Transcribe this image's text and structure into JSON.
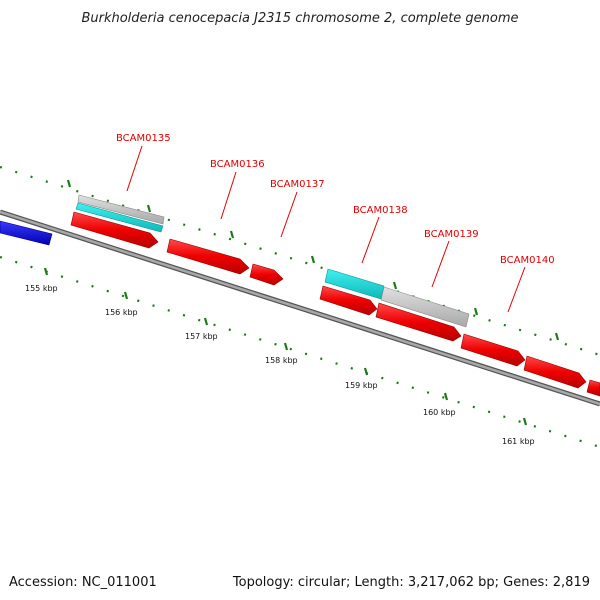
{
  "title": "Burkholderia cenocepacia J2315 chromosome 2, complete genome",
  "footer": {
    "accession": "Accession: NC_011001",
    "summary": "Topology: circular; Length: 3,217,062 bp; Genes: 2,819"
  },
  "gene_labels": [
    "BCAM0135",
    "BCAM0136",
    "BCAM0137",
    "BCAM0138",
    "BCAM0139",
    "BCAM0140"
  ],
  "scale_labels": [
    "155 kbp",
    "156 kbp",
    "157 kbp",
    "158 kbp",
    "159 kbp",
    "160 kbp",
    "161 kbp"
  ],
  "colors": {
    "cds_forward": "#ee0000",
    "cds_other": "#0000dd",
    "rna": "#00e0e0",
    "gray_feature": "#c8c8c8",
    "backbone": "#888888",
    "ticks": "#1a7a1a",
    "label": "#e00000"
  }
}
